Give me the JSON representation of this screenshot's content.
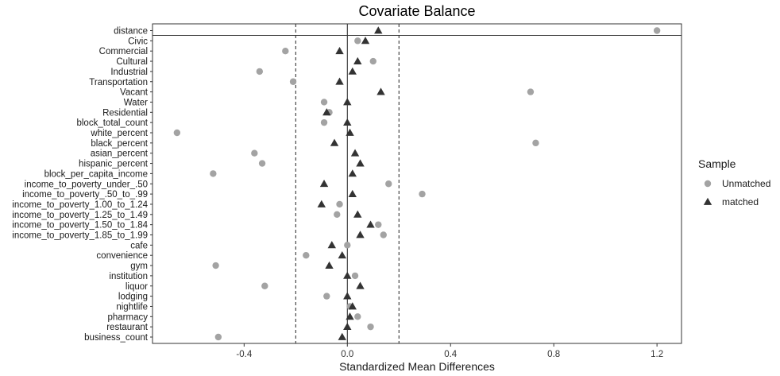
{
  "chart_data": {
    "type": "scatter",
    "title": "Covariate Balance",
    "xlabel": "Standardized Mean Differences",
    "ylabel": "",
    "xlim": [
      -0.755,
      1.295
    ],
    "xticks": [
      -0.4,
      0.0,
      0.4,
      0.8,
      1.2
    ],
    "xtick_labels": [
      "-0.4",
      "0.0",
      "0.4",
      "0.8",
      "1.2"
    ],
    "reference_lines": {
      "solid": 0.0,
      "dashed": [
        -0.2,
        0.2
      ]
    },
    "grid": false,
    "legend": {
      "title": "Sample",
      "position": "right"
    },
    "categories": [
      "distance",
      "Civic",
      "Commercial",
      "Cultural",
      "Industrial",
      "Transportation",
      "Vacant",
      "Water",
      "Residential",
      "block_total_count",
      "white_percent",
      "black_percent",
      "asian_percent",
      "hispanic_percent",
      "block_per_capita_income",
      "income_to_poverty_under_.50",
      "income_to_poverty_.50_to_.99",
      "income_to_poverty_1.00_to_1.24",
      "income_to_poverty_1.25_to_1.49",
      "income_to_poverty_1.50_to_1.84",
      "income_to_poverty_1.85_to_1.99",
      "cafe",
      "convenience",
      "gym",
      "institution",
      "liquor",
      "lodging",
      "nightlife",
      "pharmacy",
      "restaurant",
      "business_count"
    ],
    "series": [
      {
        "name": "Unmatched",
        "marker": "circle",
        "color": "#a3a3a3",
        "values": [
          1.2,
          0.04,
          -0.24,
          0.1,
          -0.34,
          -0.21,
          0.71,
          -0.09,
          -0.07,
          -0.09,
          -0.66,
          0.73,
          -0.36,
          -0.33,
          -0.52,
          0.16,
          0.29,
          -0.03,
          -0.04,
          0.12,
          0.14,
          0.0,
          -0.16,
          -0.51,
          0.03,
          -0.32,
          -0.08,
          0.01,
          0.04,
          0.09,
          -0.5
        ]
      },
      {
        "name": "matched",
        "marker": "triangle",
        "color": "#333333",
        "values": [
          0.12,
          0.07,
          -0.03,
          0.04,
          0.02,
          -0.03,
          0.13,
          0.0,
          -0.08,
          0.0,
          0.01,
          -0.05,
          0.03,
          0.05,
          0.02,
          -0.09,
          0.02,
          -0.1,
          0.04,
          0.09,
          0.05,
          -0.06,
          -0.02,
          -0.07,
          0.0,
          0.05,
          0.0,
          0.02,
          0.01,
          0.0,
          -0.02
        ]
      }
    ]
  }
}
